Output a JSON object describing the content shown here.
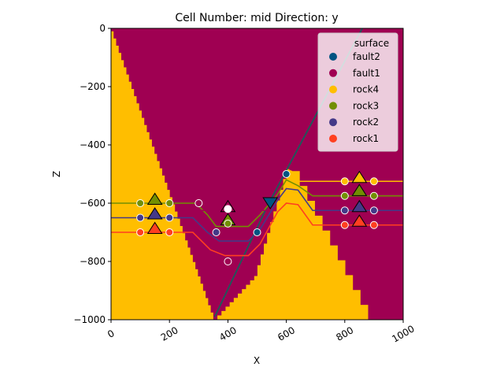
{
  "chart_data": {
    "type": "scatter",
    "title": "Cell Number: mid Direction: y",
    "xlabel": "X",
    "ylabel": "Z",
    "xlim": [
      0,
      1000
    ],
    "ylim": [
      -1000,
      0
    ],
    "x_ticks": [
      0,
      200,
      400,
      600,
      800,
      1000
    ],
    "y_ticks": [
      0,
      -200,
      -400,
      -600,
      -800,
      -1000
    ],
    "x_tick_labels": [
      "0",
      "200",
      "400",
      "600",
      "800",
      "1000"
    ],
    "y_tick_labels": [
      "0",
      "−200",
      "−400",
      "−600",
      "−800",
      "−1000"
    ],
    "grid": false,
    "legend": {
      "title": "surface",
      "placement": "top-right",
      "entries": [
        {
          "name": "fault2",
          "color": "#015482"
        },
        {
          "name": "fault1",
          "color": "#9f0052"
        },
        {
          "name": "rock4",
          "color": "#ffbe00"
        },
        {
          "name": "rock3",
          "color": "#728f02"
        },
        {
          "name": "rock2",
          "color": "#443988"
        },
        {
          "name": "rock1",
          "color": "#ff3f20"
        }
      ]
    },
    "background_units": [
      {
        "name": "fault1 block",
        "color": "#9f0052"
      },
      {
        "name": "rock4",
        "color": "#ffbe00"
      }
    ],
    "left_block_boundary": [
      [
        0,
        -10
      ],
      [
        350,
        -1000
      ]
    ],
    "center_block_boundary": [
      [
        350,
        -1000
      ],
      [
        490,
        -850
      ],
      [
        600,
        -480
      ],
      [
        620,
        -490
      ],
      [
        880,
        -1000
      ]
    ],
    "fault_line": {
      "name": "fault2",
      "color": "#1a5c5a",
      "points": [
        [
          355,
          -990
        ],
        [
          540,
          -600
        ],
        [
          860,
          0
        ]
      ]
    },
    "series": [
      {
        "name": "rock4",
        "color": "#ffbe00",
        "line": [
          [
            640,
            -525
          ],
          [
            1000,
            -525
          ]
        ],
        "points": [
          [
            800,
            -525
          ],
          [
            900,
            -525
          ]
        ],
        "orientations": [
          [
            850,
            -510
          ]
        ]
      },
      {
        "name": "rock3",
        "color": "#728f02",
        "line": [
          [
            0,
            -600
          ],
          [
            290,
            -600
          ],
          [
            330,
            -640
          ],
          [
            360,
            -680
          ],
          [
            470,
            -680
          ],
          [
            510,
            -640
          ],
          [
            570,
            -570
          ],
          [
            600,
            -520
          ],
          [
            640,
            -540
          ],
          [
            690,
            -575
          ],
          [
            1000,
            -575
          ]
        ],
        "points": [
          [
            100,
            -600
          ],
          [
            200,
            -600
          ],
          [
            800,
            -575
          ],
          [
            900,
            -575
          ],
          [
            400,
            -670
          ]
        ],
        "orientations": [
          [
            150,
            -585
          ],
          [
            850,
            -555
          ],
          [
            400,
            -655
          ]
        ]
      },
      {
        "name": "rock2",
        "color": "#443988",
        "line": [
          [
            0,
            -650
          ],
          [
            280,
            -650
          ],
          [
            330,
            -700
          ],
          [
            370,
            -730
          ],
          [
            470,
            -730
          ],
          [
            510,
            -690
          ],
          [
            570,
            -590
          ],
          [
            600,
            -550
          ],
          [
            640,
            -555
          ],
          [
            690,
            -625
          ],
          [
            1000,
            -625
          ]
        ],
        "points": [
          [
            100,
            -650
          ],
          [
            200,
            -650
          ],
          [
            800,
            -625
          ],
          [
            900,
            -625
          ]
        ],
        "orientations": [
          [
            150,
            -635
          ],
          [
            850,
            -610
          ]
        ]
      },
      {
        "name": "rock1",
        "color": "#ff3f20",
        "line": [
          [
            0,
            -700
          ],
          [
            280,
            -700
          ],
          [
            340,
            -760
          ],
          [
            390,
            -780
          ],
          [
            470,
            -780
          ],
          [
            510,
            -740
          ],
          [
            570,
            -630
          ],
          [
            600,
            -600
          ],
          [
            640,
            -605
          ],
          [
            690,
            -675
          ],
          [
            1000,
            -675
          ]
        ],
        "points": [
          [
            100,
            -700
          ],
          [
            200,
            -700
          ],
          [
            800,
            -675
          ],
          [
            900,
            -675
          ]
        ],
        "orientations": [
          [
            150,
            -685
          ],
          [
            850,
            -660
          ]
        ]
      },
      {
        "name": "fault1",
        "color": "#9f0052",
        "line": [
          [
            290,
            -625
          ],
          [
            545,
            -625
          ]
        ],
        "points": [
          [
            300,
            -600
          ],
          [
            400,
            -800
          ]
        ],
        "orientations": [
          [
            400,
            -610
          ]
        ]
      },
      {
        "name": "fault2",
        "color": "#015482",
        "points": [
          [
            500,
            -700
          ],
          [
            600,
            -500
          ]
        ],
        "orientations": [
          [
            545,
            -600
          ]
        ]
      }
    ],
    "extra_points": [
      {
        "color": "#443988",
        "x": 360,
        "y": -700
      },
      {
        "color": "#ffffff",
        "x": 400,
        "y": -620
      }
    ]
  }
}
